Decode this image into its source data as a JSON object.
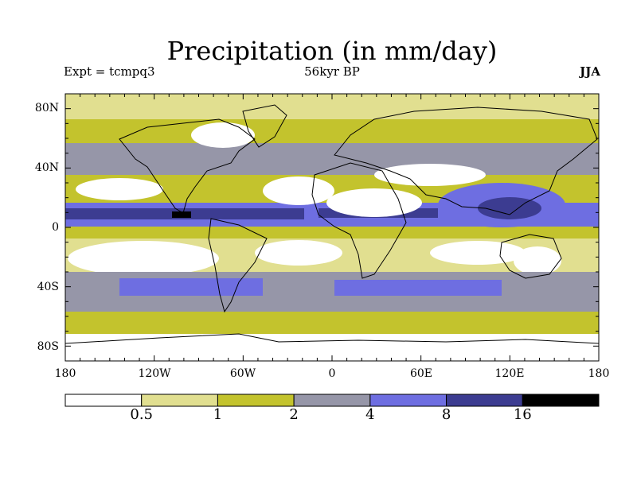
{
  "title": "Precipitation (in mm/day)",
  "subtitle_left": "Expt = tcmpq3",
  "subtitle_center": "56kyr BP",
  "subtitle_right": "JJA",
  "map": {
    "projection": "cylindrical equidistant",
    "lon_range": [
      -180,
      180
    ],
    "lat_range": [
      -90,
      90
    ],
    "lat_labels": [
      "80N",
      "40N",
      "0",
      "40S",
      "80S"
    ],
    "lon_labels": [
      "180",
      "120W",
      "60W",
      "0",
      "60E",
      "120E",
      "180"
    ]
  },
  "legend": {
    "colors": [
      "#ffffff",
      "#e1df90",
      "#c3c32d",
      "#9696a8",
      "#6e6ee1",
      "#3c3c91",
      "#000000"
    ],
    "labels": [
      "0.5",
      "1",
      "2",
      "4",
      "8",
      "16"
    ]
  },
  "chart_data": {
    "type": "heatmap",
    "title": "Precipitation (in mm/day)",
    "variable": "Precipitation",
    "units": "mm/day",
    "levels": [
      0.5,
      1,
      2,
      4,
      8,
      16
    ],
    "xlim": [
      -180,
      180
    ],
    "ylim": [
      -90,
      90
    ]
  }
}
